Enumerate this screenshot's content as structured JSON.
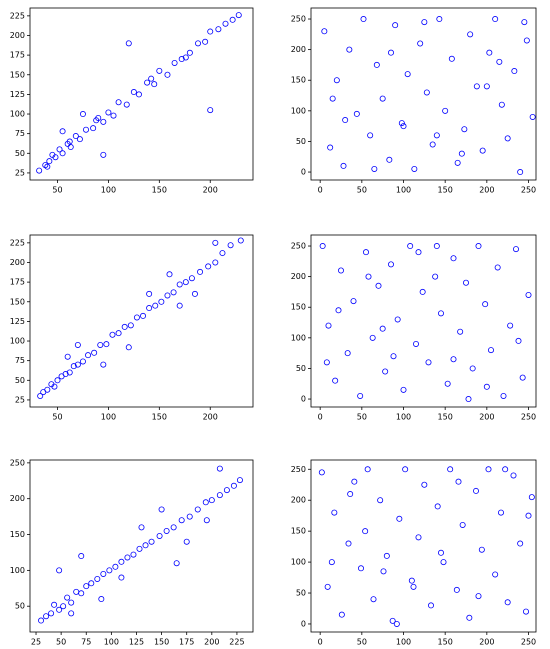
{
  "chart_data": [
    {
      "type": "scatter",
      "color": "#0000ff",
      "x": [
        32,
        38,
        42,
        45,
        48,
        52,
        55,
        60,
        63,
        68,
        72,
        78,
        85,
        90,
        95,
        100,
        105,
        110,
        118,
        125,
        130,
        138,
        145,
        150,
        158,
        165,
        172,
        180,
        188,
        195,
        200,
        208,
        215,
        222,
        228,
        55,
        75,
        120,
        200,
        95,
        40,
        62,
        88,
        142,
        176
      ],
      "values": [
        28,
        35,
        40,
        48,
        45,
        55,
        50,
        62,
        58,
        72,
        68,
        80,
        82,
        95,
        90,
        102,
        98,
        115,
        112,
        128,
        125,
        140,
        138,
        155,
        150,
        165,
        170,
        178,
        190,
        192,
        205,
        208,
        215,
        220,
        226,
        78,
        100,
        190,
        105,
        48,
        33,
        65,
        92,
        145,
        172
      ],
      "xlim": [
        23,
        242
      ],
      "ylim": [
        16,
        235
      ],
      "xticks": [
        50,
        100,
        150,
        200
      ],
      "yticks": [
        25,
        50,
        75,
        100,
        125,
        150,
        175,
        200,
        225
      ]
    },
    {
      "type": "scatter",
      "color": "#0000ff",
      "x": [
        5,
        12,
        20,
        28,
        35,
        44,
        52,
        60,
        68,
        75,
        83,
        90,
        98,
        105,
        113,
        120,
        128,
        135,
        143,
        150,
        158,
        165,
        173,
        180,
        188,
        195,
        203,
        210,
        218,
        225,
        233,
        240,
        248,
        255,
        15,
        65,
        140,
        200,
        245,
        100,
        30,
        85,
        170,
        215,
        125
      ],
      "values": [
        230,
        40,
        150,
        10,
        200,
        95,
        250,
        60,
        175,
        120,
        20,
        240,
        80,
        160,
        5,
        210,
        130,
        45,
        250,
        100,
        185,
        15,
        70,
        225,
        140,
        35,
        195,
        250,
        110,
        55,
        165,
        0,
        215,
        90,
        120,
        5,
        60,
        140,
        245,
        75,
        85,
        195,
        30,
        180,
        245
      ],
      "xlim": [
        -11,
        259
      ],
      "ylim": [
        -13,
        268
      ],
      "xticks": [
        0,
        50,
        100,
        150,
        200,
        250
      ],
      "yticks": [
        0,
        50,
        100,
        150,
        200,
        250
      ]
    },
    {
      "type": "scatter",
      "color": "#0000ff",
      "x": [
        33,
        36,
        40,
        44,
        47,
        50,
        54,
        58,
        62,
        66,
        70,
        75,
        80,
        86,
        92,
        98,
        104,
        110,
        116,
        122,
        128,
        134,
        140,
        146,
        152,
        158,
        164,
        170,
        176,
        182,
        190,
        198,
        205,
        212,
        220,
        230,
        60,
        95,
        140,
        170,
        185,
        70,
        120,
        160,
        205
      ],
      "values": [
        30,
        35,
        38,
        45,
        42,
        50,
        55,
        58,
        60,
        68,
        70,
        74,
        82,
        85,
        95,
        96,
        108,
        110,
        118,
        120,
        130,
        132,
        142,
        145,
        150,
        158,
        162,
        172,
        175,
        180,
        188,
        195,
        200,
        212,
        222,
        228,
        80,
        70,
        160,
        145,
        160,
        95,
        92,
        185,
        225
      ],
      "xlim": [
        23,
        242
      ],
      "ylim": [
        16,
        235
      ],
      "xticks": [
        50,
        100,
        150,
        200
      ],
      "yticks": [
        25,
        50,
        75,
        100,
        125,
        150,
        175,
        200,
        225
      ]
    },
    {
      "type": "scatter",
      "color": "#0000ff",
      "x": [
        3,
        10,
        18,
        25,
        33,
        40,
        48,
        55,
        63,
        70,
        78,
        85,
        93,
        100,
        108,
        115,
        123,
        130,
        138,
        145,
        153,
        160,
        168,
        175,
        183,
        190,
        198,
        205,
        213,
        220,
        228,
        235,
        243,
        250,
        8,
        58,
        118,
        178,
        238,
        88,
        22,
        140,
        200,
        75,
        160
      ],
      "values": [
        250,
        120,
        30,
        210,
        75,
        160,
        5,
        240,
        100,
        185,
        45,
        220,
        130,
        15,
        250,
        90,
        175,
        60,
        200,
        140,
        25,
        230,
        110,
        190,
        50,
        250,
        155,
        80,
        215,
        5,
        120,
        245,
        35,
        170,
        60,
        200,
        240,
        0,
        95,
        70,
        145,
        250,
        20,
        115,
        65
      ],
      "xlim": [
        -11,
        259
      ],
      "ylim": [
        -13,
        268
      ],
      "xticks": [
        0,
        50,
        100,
        150,
        200,
        250
      ],
      "yticks": [
        0,
        50,
        100,
        150,
        200,
        250
      ]
    },
    {
      "type": "scatter",
      "color": "#0000ff",
      "x": [
        30,
        35,
        40,
        43,
        48,
        52,
        56,
        60,
        65,
        70,
        75,
        80,
        86,
        92,
        98,
        104,
        110,
        116,
        122,
        128,
        134,
        140,
        148,
        155,
        162,
        170,
        178,
        186,
        194,
        200,
        208,
        215,
        222,
        228,
        48,
        70,
        90,
        130,
        165,
        208,
        60,
        110,
        150,
        175,
        195
      ],
      "values": [
        30,
        36,
        40,
        52,
        45,
        50,
        62,
        55,
        70,
        68,
        78,
        82,
        88,
        95,
        100,
        105,
        112,
        118,
        122,
        130,
        135,
        140,
        148,
        155,
        160,
        170,
        175,
        185,
        195,
        198,
        205,
        212,
        218,
        226,
        100,
        120,
        60,
        160,
        110,
        242,
        40,
        90,
        185,
        140,
        170
      ],
      "xlim": [
        19,
        241
      ],
      "ylim": [
        14,
        254
      ],
      "xticks": [
        25,
        50,
        75,
        100,
        125,
        150,
        175,
        200,
        225
      ],
      "yticks": [
        50,
        100,
        150,
        200,
        250
      ]
    },
    {
      "type": "scatter",
      "color": "#0000ff",
      "x": [
        2,
        9,
        17,
        26,
        34,
        41,
        49,
        57,
        64,
        72,
        80,
        87,
        95,
        102,
        110,
        118,
        125,
        133,
        141,
        148,
        156,
        164,
        171,
        179,
        187,
        194,
        202,
        210,
        217,
        225,
        232,
        240,
        247,
        254,
        14,
        54,
        112,
        166,
        222,
        92,
        36,
        145,
        190,
        76,
        250
      ],
      "values": [
        245,
        60,
        180,
        15,
        130,
        230,
        90,
        250,
        40,
        200,
        110,
        5,
        170,
        250,
        70,
        140,
        225,
        30,
        190,
        100,
        250,
        55,
        160,
        10,
        215,
        120,
        250,
        80,
        180,
        35,
        240,
        130,
        20,
        205,
        100,
        150,
        60,
        230,
        250,
        0,
        210,
        115,
        45,
        85,
        175
      ],
      "xlim": [
        -11,
        259
      ],
      "ylim": [
        -13,
        265
      ],
      "xticks": [
        0,
        50,
        100,
        150,
        200,
        250
      ],
      "yticks": [
        0,
        50,
        100,
        150,
        200,
        250
      ]
    }
  ]
}
